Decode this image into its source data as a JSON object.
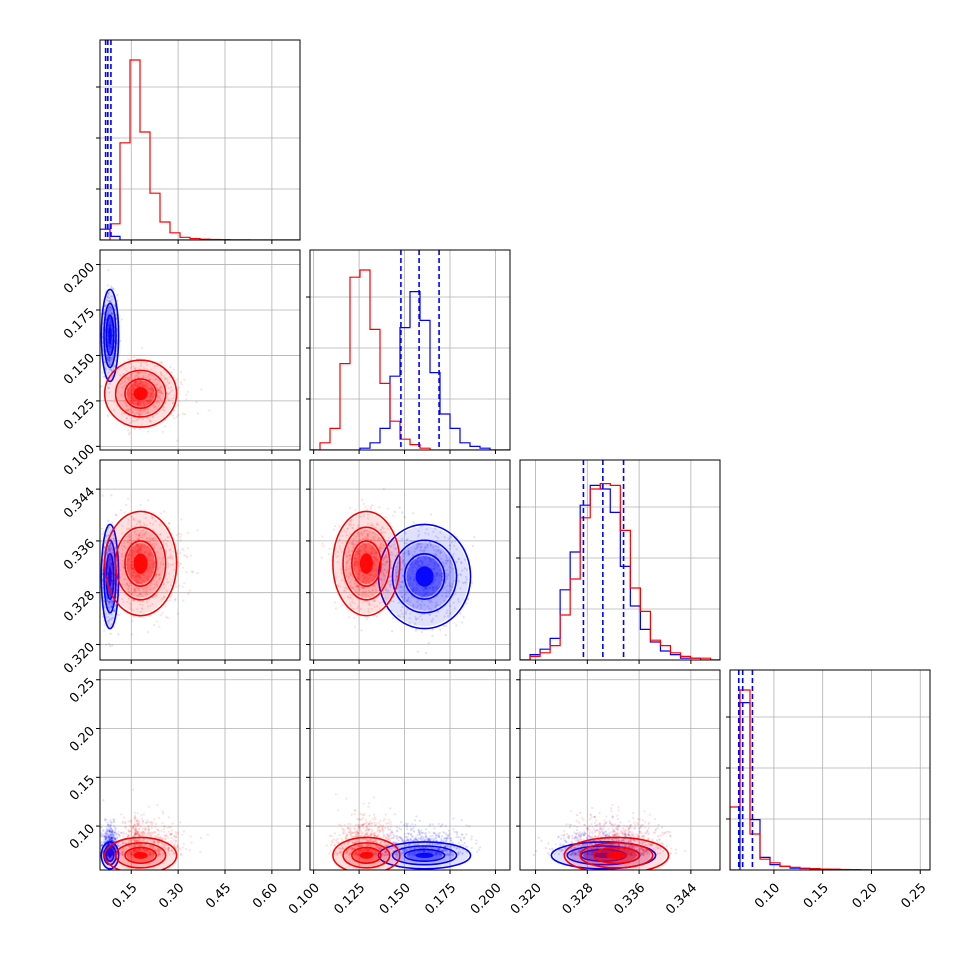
{
  "chart_data": {
    "type": "corner",
    "n_params": 4,
    "grid": true,
    "series": [
      {
        "color": "#ff0000"
      },
      {
        "color": "#0000ff"
      }
    ],
    "axes_ranges": [
      [
        0.05,
        0.69
      ],
      [
        0.098,
        0.208
      ],
      [
        0.3176,
        0.3485
      ],
      [
        0.055,
        0.26
      ]
    ],
    "ticks": {
      "x": [
        {
          "values": [
            0.15,
            0.3,
            0.45,
            0.6
          ],
          "labels": [
            "0.15",
            "0.30",
            "0.45",
            "0.60"
          ]
        },
        {
          "values": [
            0.1,
            0.125,
            0.15,
            0.175,
            0.2
          ],
          "labels": [
            "0.100",
            "0.125",
            "0.150",
            "0.175",
            "0.200"
          ]
        },
        {
          "values": [
            0.32,
            0.328,
            0.336,
            0.344
          ],
          "labels": [
            "0.320",
            "0.328",
            "0.336",
            "0.344"
          ]
        },
        {
          "values": [
            0.1,
            0.15,
            0.2,
            0.25
          ],
          "labels": [
            "0.10",
            "0.15",
            "0.20",
            "0.25"
          ]
        }
      ],
      "y": [
        null,
        {
          "values": [
            0.1,
            0.125,
            0.15,
            0.175,
            0.2
          ],
          "labels": [
            "0.100",
            "0.125",
            "0.150",
            "0.175",
            "0.200"
          ]
        },
        {
          "values": [
            0.32,
            0.328,
            0.336,
            0.344
          ],
          "labels": [
            "0.320",
            "0.328",
            "0.336",
            "0.344"
          ]
        },
        {
          "values": [
            0.1,
            0.15,
            0.2,
            0.25
          ],
          "labels": [
            "0.10",
            "0.15",
            "0.20",
            "0.25"
          ]
        }
      ]
    },
    "histograms": [
      {
        "bin_edges": [
          0.05,
          0.082,
          0.114,
          0.146,
          0.178,
          0.21,
          0.242,
          0.274,
          0.306,
          0.338,
          0.37,
          0.402,
          0.434,
          0.466,
          0.498,
          0.53,
          0.562,
          0.594,
          0.626,
          0.658,
          0.69
        ],
        "red": [
          0.0,
          0.09,
          0.54,
          1.0,
          0.6,
          0.26,
          0.1,
          0.04,
          0.015,
          0.008,
          0.004,
          0.003,
          0.002,
          0.001,
          0.001,
          0.0,
          0.0,
          0.0,
          0.0,
          0.0
        ],
        "blue": [
          0.06,
          0.02,
          0.0,
          0.0,
          0.0,
          0.0,
          0.0,
          0.0,
          0.0,
          0.0,
          0.0,
          0.0,
          0.0,
          0.0,
          0.0,
          0.0,
          0.0,
          0.0,
          0.0,
          0.0
        ],
        "quantile_lines": [
          0.068,
          0.075,
          0.085
        ],
        "y_ticks_shown": true
      },
      {
        "bin_edges": [
          0.098,
          0.1035,
          0.109,
          0.1145,
          0.12,
          0.1255,
          0.131,
          0.1365,
          0.142,
          0.1475,
          0.153,
          0.1585,
          0.164,
          0.1695,
          0.175,
          0.1805,
          0.186,
          0.1915,
          0.197,
          0.2025,
          0.208
        ],
        "red": [
          0.0,
          0.04,
          0.12,
          0.48,
          0.96,
          1.0,
          0.67,
          0.37,
          0.16,
          0.06,
          0.03,
          0.01,
          0.0,
          0.0,
          0.0,
          0.0,
          0.0,
          0.0,
          0.0,
          0.0
        ],
        "blue": [
          0.0,
          0.0,
          0.0,
          0.0,
          0.0,
          0.01,
          0.04,
          0.12,
          0.41,
          0.68,
          0.88,
          0.72,
          0.43,
          0.2,
          0.12,
          0.04,
          0.02,
          0.01,
          0.0,
          0.0
        ],
        "quantile_lines": [
          0.148,
          0.158,
          0.169
        ],
        "y_ticks_shown": false
      },
      {
        "bin_edges": [
          0.3176,
          0.31915,
          0.3207,
          0.32225,
          0.3238,
          0.32535,
          0.3269,
          0.32845,
          0.33,
          0.33155,
          0.3331,
          0.33465,
          0.3362,
          0.33775,
          0.3393,
          0.34085,
          0.3424,
          0.34395,
          0.3455,
          0.34705,
          0.3486
        ],
        "red": [
          0.0,
          0.02,
          0.04,
          0.08,
          0.25,
          0.45,
          0.79,
          0.95,
          0.98,
          0.97,
          0.72,
          0.4,
          0.27,
          0.11,
          0.08,
          0.04,
          0.02,
          0.01,
          0.01,
          0.0
        ],
        "blue": [
          0.0,
          0.03,
          0.06,
          0.12,
          0.39,
          0.6,
          0.86,
          0.97,
          0.95,
          0.82,
          0.52,
          0.3,
          0.17,
          0.1,
          0.05,
          0.03,
          0.01,
          0.01,
          0.0,
          0.0
        ],
        "quantile_lines": [
          0.3274,
          0.3304,
          0.3336
        ],
        "y_ticks_shown": false
      },
      {
        "bin_edges": [
          0.055,
          0.06525,
          0.0755,
          0.08575,
          0.096,
          0.10625,
          0.1165,
          0.12675,
          0.137,
          0.14725,
          0.1575,
          0.16775,
          0.178,
          0.18825,
          0.1985,
          0.20875,
          0.219,
          0.22925,
          0.2395,
          0.24975,
          0.26
        ],
        "red": [
          0.35,
          1.0,
          0.2,
          0.06,
          0.04,
          0.02,
          0.015,
          0.01,
          0.008,
          0.005,
          0.004,
          0.003,
          0.002,
          0.001,
          0.0,
          0.0,
          0.0,
          0.0,
          0.0,
          0.0
        ],
        "blue": [
          0.0,
          0.93,
          0.28,
          0.07,
          0.03,
          0.02,
          0.01,
          0.008,
          0.005,
          0.004,
          0.003,
          0.002,
          0.001,
          0.0,
          0.0,
          0.0,
          0.0,
          0.0,
          0.0,
          0.0
        ],
        "quantile_lines": [
          0.064,
          0.068,
          0.078
        ],
        "y_ticks_shown": false
      }
    ],
    "posterior_means": {
      "red": [
        0.18,
        0.129,
        0.3325,
        0.07
      ],
      "blue": [
        0.082,
        0.161,
        0.3305,
        0.07
      ]
    },
    "posterior_sigmas": {
      "red": [
        0.05,
        0.008,
        0.0035,
        0.008
      ],
      "blue": [
        0.012,
        0.011,
        0.0035,
        0.006
      ]
    }
  }
}
